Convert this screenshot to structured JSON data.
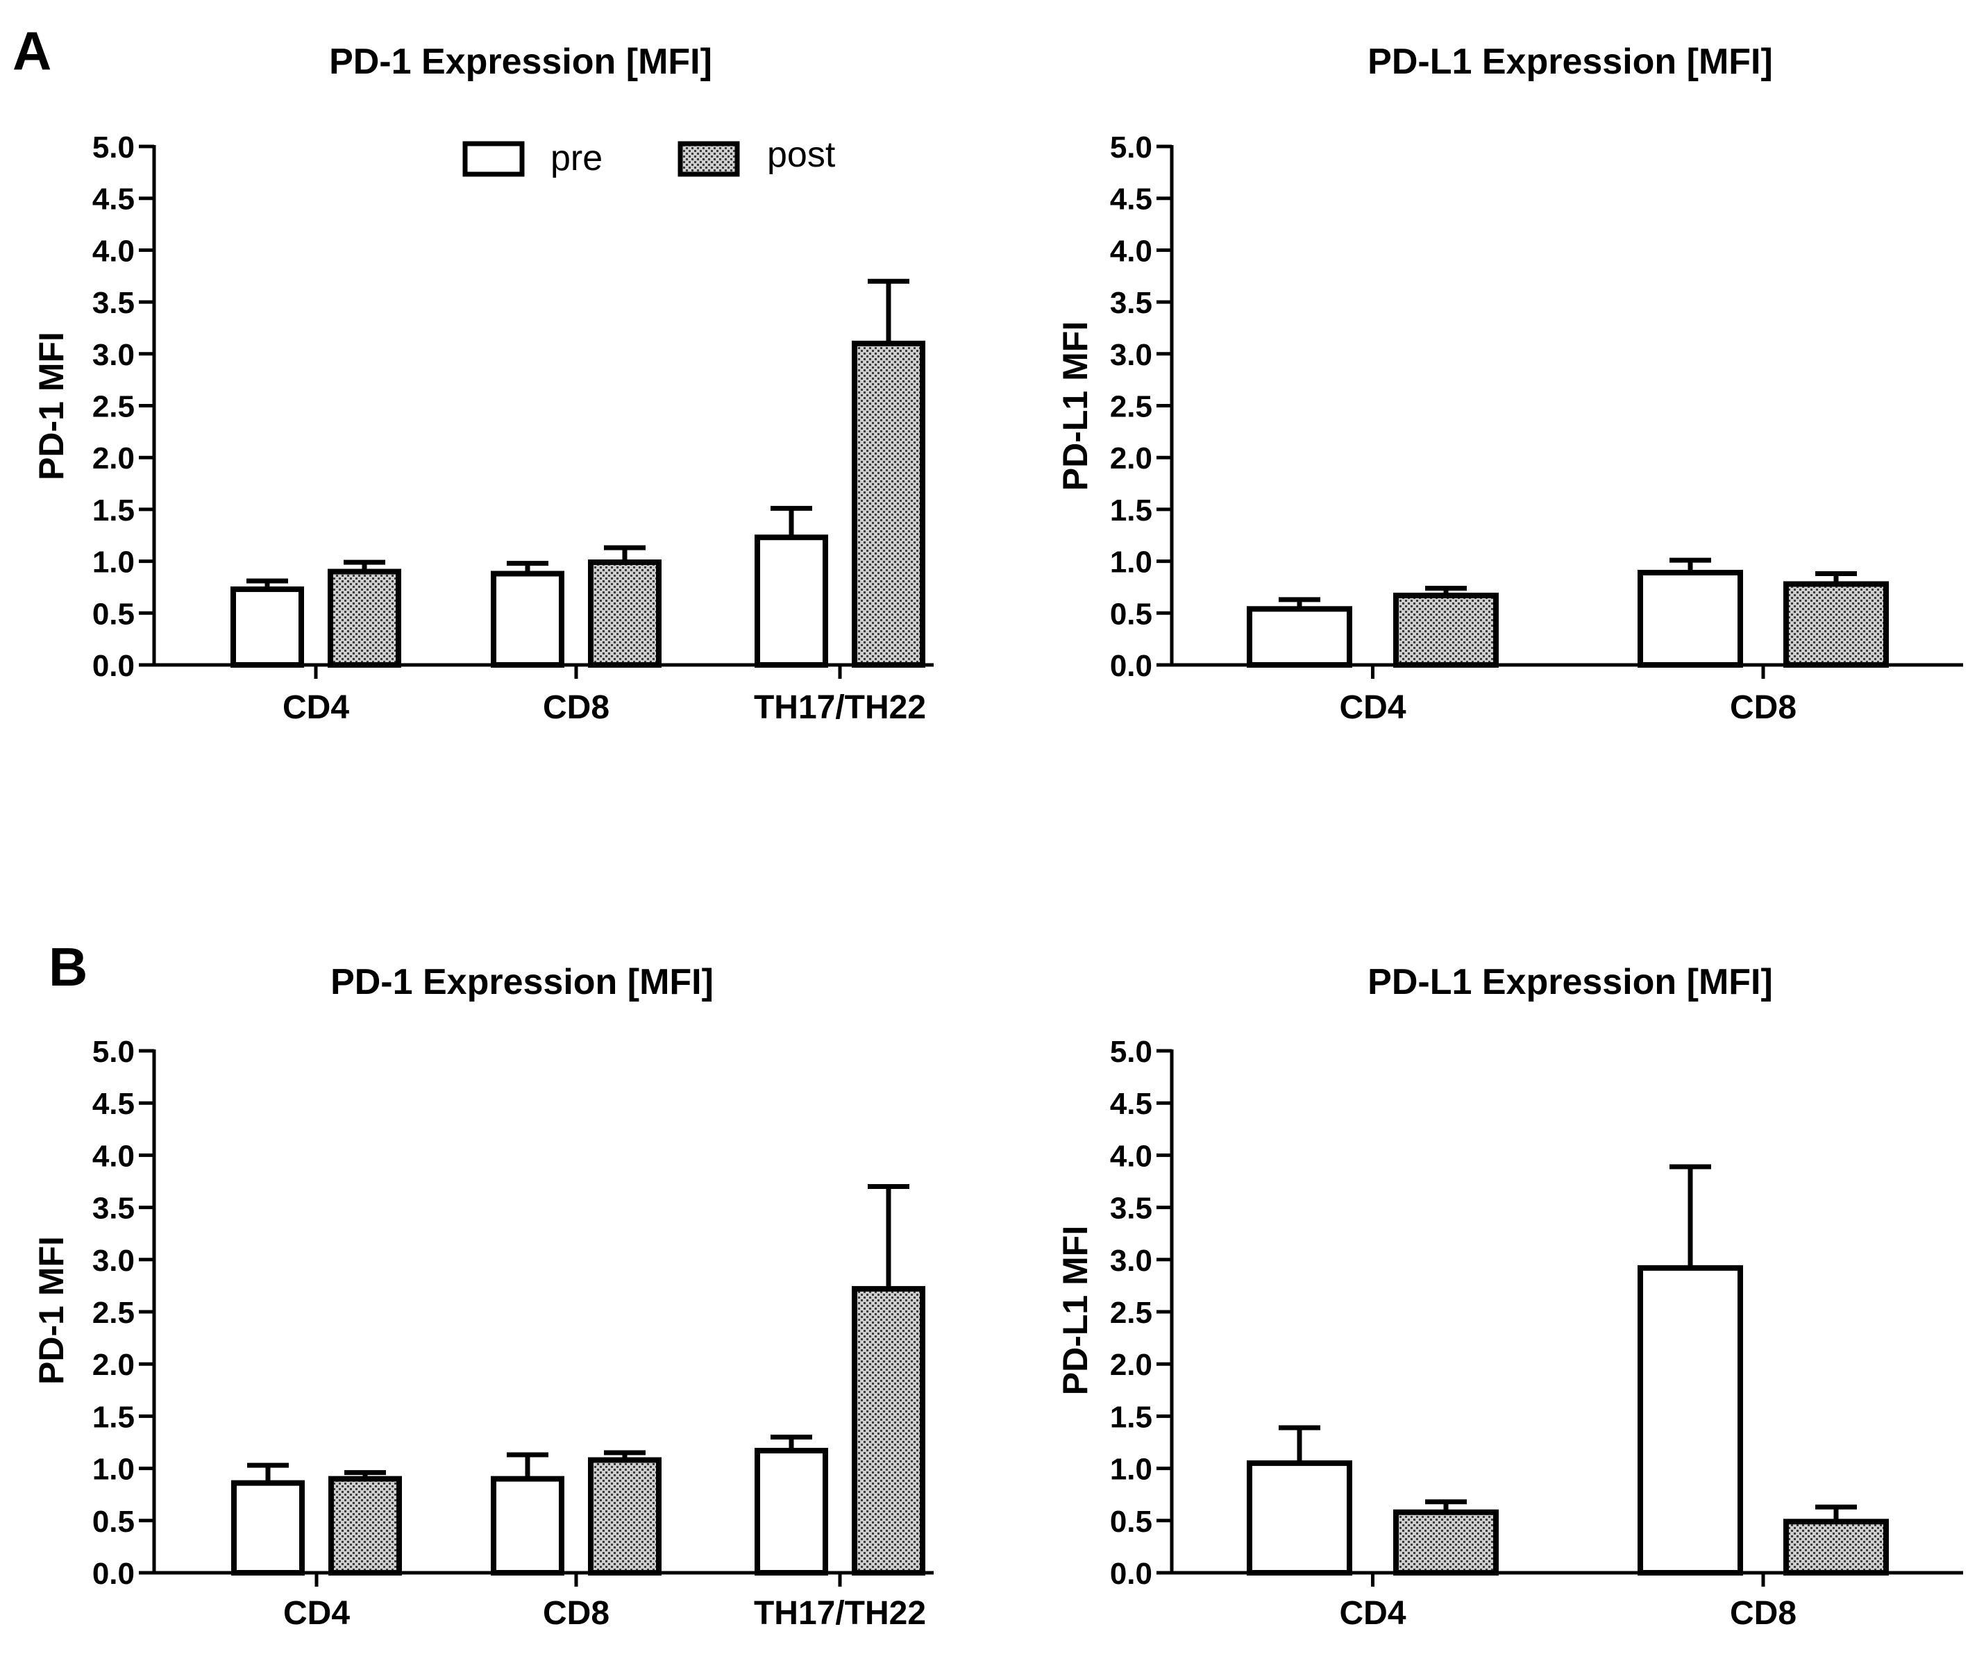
{
  "figure": {
    "panel_labels": [
      "A",
      "B"
    ]
  },
  "colors": {
    "stroke": "#000000",
    "pre_fill": "#ffffff",
    "post_pattern_bg": "#cfcfcf",
    "post_pattern_dot": "#3a3a3a"
  },
  "legend": {
    "pre": "pre",
    "post": "post"
  },
  "chart_data": [
    {
      "type": "bar",
      "panel": "A",
      "title": "PD-1 Expression [MFI]",
      "xlabel": "",
      "ylabel": "PD-1 MFI",
      "ylim": [
        0,
        5
      ],
      "yticks": [
        "0.0",
        "0.5",
        "1.0",
        "1.5",
        "2.0",
        "2.5",
        "3.0",
        "3.5",
        "4.0",
        "4.5",
        "5.0"
      ],
      "categories": [
        "CD4",
        "CD8",
        "TH17/TH22"
      ],
      "series": [
        {
          "name": "pre",
          "values": [
            0.73,
            0.88,
            1.23
          ],
          "errors": [
            0.08,
            0.1,
            0.28
          ]
        },
        {
          "name": "post",
          "values": [
            0.9,
            0.99,
            3.1
          ],
          "errors": [
            0.09,
            0.14,
            0.6
          ]
        }
      ],
      "legend": true
    },
    {
      "type": "bar",
      "panel": "A",
      "title": "PD-L1 Expression [MFI]",
      "xlabel": "",
      "ylabel": "PD-L1 MFI",
      "ylim": [
        0,
        5
      ],
      "yticks": [
        "0.0",
        "0.5",
        "1.0",
        "1.5",
        "2.0",
        "2.5",
        "3.0",
        "3.5",
        "4.0",
        "4.5",
        "5.0"
      ],
      "categories": [
        "CD4",
        "CD8"
      ],
      "series": [
        {
          "name": "pre",
          "values": [
            0.54,
            0.89
          ],
          "errors": [
            0.09,
            0.12
          ]
        },
        {
          "name": "post",
          "values": [
            0.67,
            0.78
          ],
          "errors": [
            0.07,
            0.1
          ]
        }
      ],
      "legend": false
    },
    {
      "type": "bar",
      "panel": "B",
      "title": "PD-1 Expression [MFI]",
      "xlabel": "",
      "ylabel": "PD-1 MFI",
      "ylim": [
        0,
        5
      ],
      "yticks": [
        "0.0",
        "0.5",
        "1.0",
        "1.5",
        "2.0",
        "2.5",
        "3.0",
        "3.5",
        "4.0",
        "4.5",
        "5.0"
      ],
      "categories": [
        "CD4",
        "CD8",
        "TH17/TH22"
      ],
      "series": [
        {
          "name": "pre",
          "values": [
            0.86,
            0.9,
            1.17
          ],
          "errors": [
            0.17,
            0.23,
            0.13
          ]
        },
        {
          "name": "post",
          "values": [
            0.9,
            1.08,
            2.72
          ],
          "errors": [
            0.06,
            0.07,
            0.98
          ]
        }
      ],
      "legend": false
    },
    {
      "type": "bar",
      "panel": "B",
      "title": "PD-L1 Expression [MFI]",
      "xlabel": "",
      "ylabel": "PD-L1 MFI",
      "ylim": [
        0,
        5
      ],
      "yticks": [
        "0.0",
        "0.5",
        "1.0",
        "1.5",
        "2.0",
        "2.5",
        "3.0",
        "3.5",
        "4.0",
        "4.5",
        "5.0"
      ],
      "categories": [
        "CD4",
        "CD8"
      ],
      "series": [
        {
          "name": "pre",
          "values": [
            1.05,
            2.92
          ],
          "errors": [
            0.34,
            0.97
          ]
        },
        {
          "name": "post",
          "values": [
            0.58,
            0.49
          ],
          "errors": [
            0.1,
            0.14
          ]
        }
      ],
      "legend": false
    }
  ]
}
